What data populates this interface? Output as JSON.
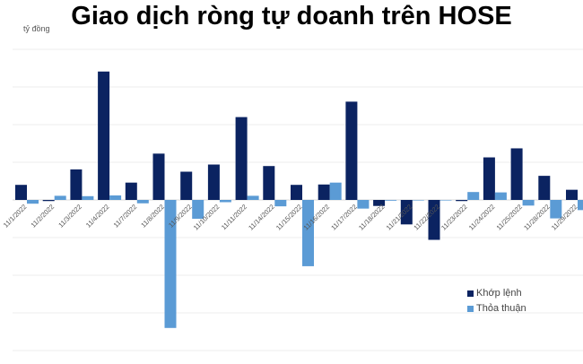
{
  "chart_data": {
    "type": "bar",
    "title": "Giao dịch ròng tự doanh trên HOSE",
    "ylabel": "tỷ đồng",
    "value_units_note_hidden": null,
    "ylim": [
      -4,
      4
    ],
    "grid": true,
    "legend_placement": "bottom-right",
    "categories": [
      "11/1/2022",
      "11/2/2022",
      "11/3/2022",
      "11/4/2022",
      "11/7/2022",
      "11/8/2022",
      "11/9/2022",
      "11/10/2022",
      "11/11/2022",
      "11/14/2022",
      "11/15/2022",
      "11/16/2022",
      "11/17/2022",
      "11/18/2022",
      "11/21/2022",
      "11/22/2022",
      "11/23/2022",
      "11/24/2022",
      "11/25/2022",
      "11/28/2022",
      "11/29/2022"
    ],
    "series": [
      {
        "name": "Khớp lệnh",
        "color": "#0b2361",
        "values": [
          0.4,
          -0.03,
          0.81,
          3.41,
          0.46,
          1.23,
          0.75,
          0.94,
          2.2,
          0.9,
          0.4,
          0.41,
          2.61,
          -0.16,
          -0.65,
          -1.06,
          -0.03,
          1.13,
          1.37,
          0.64,
          0.27
        ]
      },
      {
        "name": "Thỏa thuận",
        "color": "#5b9bd5",
        "values": [
          -0.1,
          0.11,
          0.1,
          0.12,
          -0.09,
          -3.4,
          -0.5,
          -0.06,
          0.11,
          -0.17,
          -1.76,
          0.46,
          -0.23,
          -0.02,
          0.0,
          0.0,
          0.21,
          0.2,
          -0.15,
          -0.49,
          -0.27
        ]
      }
    ]
  }
}
